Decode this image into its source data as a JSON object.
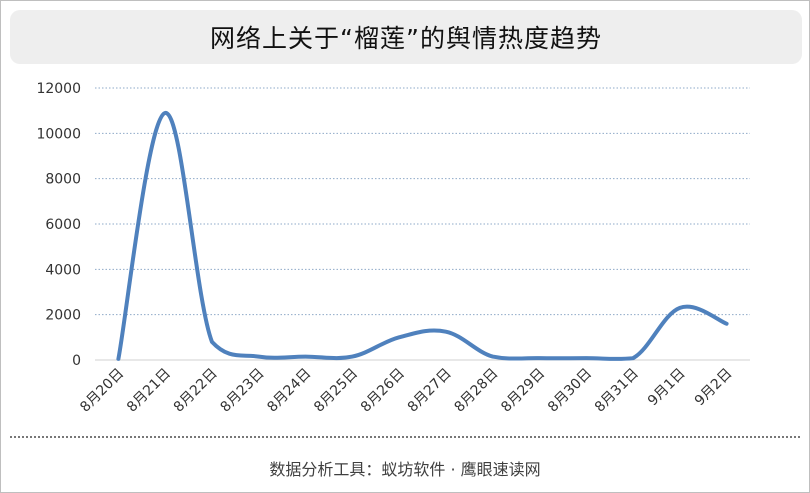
{
  "chart_data": {
    "type": "line",
    "title": "网络上关于“榴莲”的舆情热度趋势",
    "xlabel": "",
    "ylabel": "",
    "categories": [
      "8月20日",
      "8月21日",
      "8月22日",
      "8月23日",
      "8月24日",
      "8月25日",
      "8月26日",
      "8月27日",
      "8月28日",
      "8月29日",
      "8月30日",
      "8月31日",
      "9月1日",
      "9月2日"
    ],
    "series": [
      {
        "values": [
          50,
          10900,
          800,
          150,
          150,
          150,
          1000,
          1250,
          150,
          80,
          80,
          80,
          2300,
          1600
        ]
      }
    ],
    "ylim": [
      0,
      12000
    ],
    "yticks": [
      0,
      2000,
      4000,
      6000,
      8000,
      10000,
      12000
    ],
    "grid": true,
    "smooth": true,
    "line_color": "#4f81bd",
    "grid_color": "#8ea9c8",
    "axis_color": "#d0d0d0"
  },
  "footer": {
    "source": "数据分析工具：蚁坊软件 · 鹰眼速读网"
  }
}
